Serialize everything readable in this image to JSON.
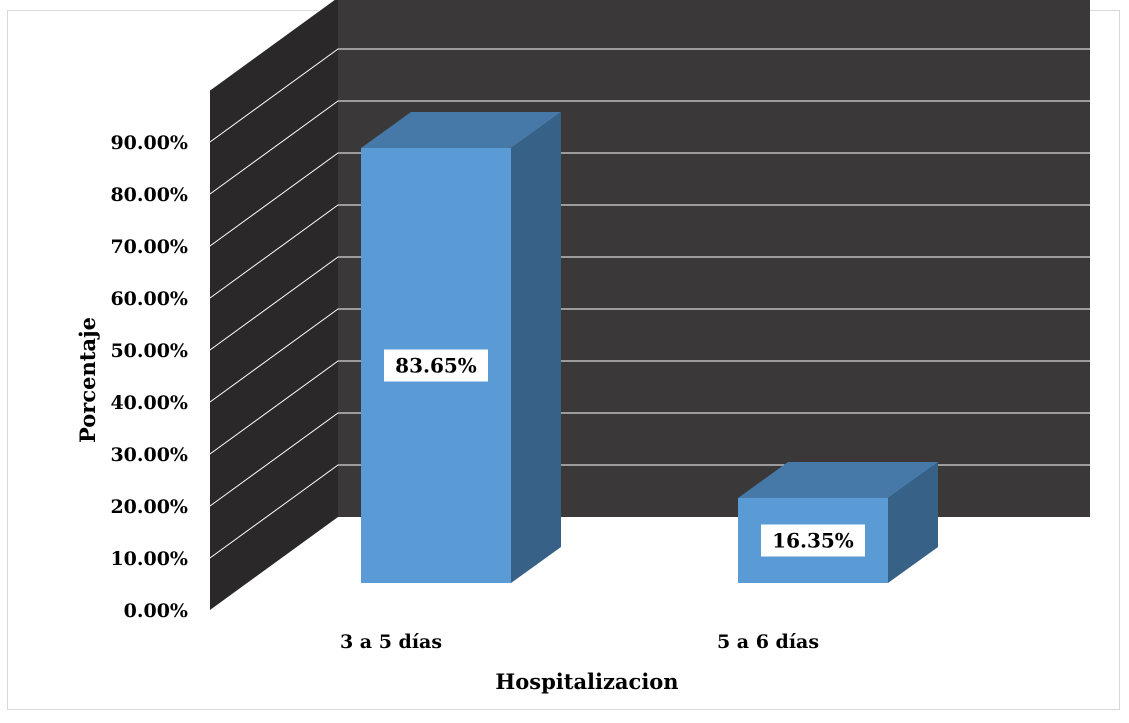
{
  "chart_data": {
    "type": "bar",
    "categories": [
      "3 a 5 días",
      "5 a 6 días"
    ],
    "values": [
      83.65,
      16.35
    ],
    "data_labels": [
      "83.65%",
      "16.35%"
    ],
    "ylim": [
      0,
      90
    ],
    "y_ticks": [
      "0.00%",
      "10.00%",
      "20.00%",
      "30.00%",
      "40.00%",
      "50.00%",
      "60.00%",
      "70.00%",
      "80.00%",
      "90.00%"
    ],
    "xlabel": "Hospitalizacion",
    "ylabel": "Porcentaje",
    "style": "3d",
    "grid": true,
    "legend": "none",
    "colors": {
      "bar_front": "#5b9bd5",
      "bar_top": "#4779a8",
      "bar_side": "#376187",
      "back_wall": "#3a3838",
      "side_wall": "#2a2828",
      "gridline": "#ffffff"
    }
  }
}
